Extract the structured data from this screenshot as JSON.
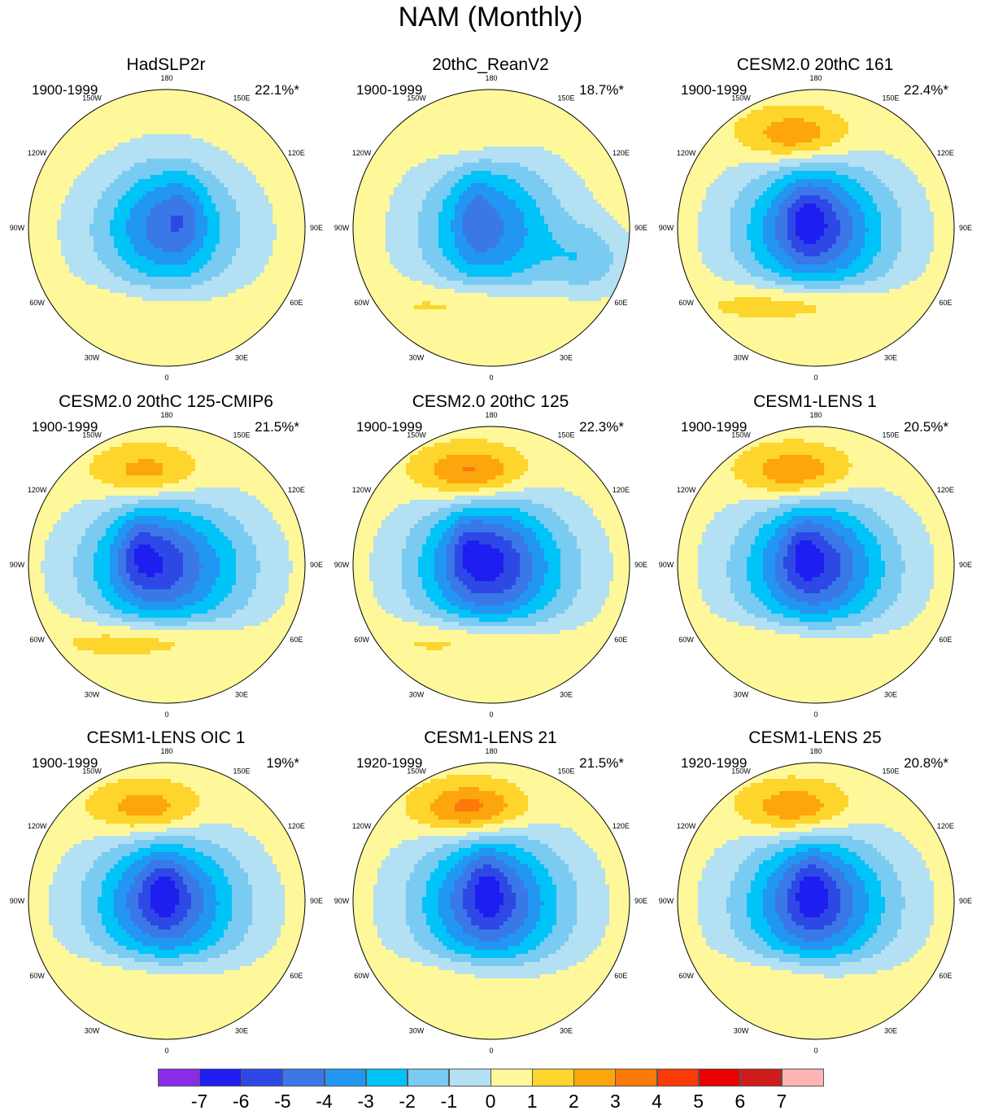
{
  "title": "NAM (Monthly)",
  "panels": [
    {
      "title": "HadSLP2r",
      "period": "1900-1999",
      "variance": "22.1%*",
      "pac": 0.0,
      "atl": 0.8,
      "low": [
        [
          0,
          -3.5,
          5.0,
          4.2
        ],
        [
          -0.2,
          -0.5,
          2.8,
          3.4
        ],
        [
          1.0,
          -0.8,
          1.2,
          2.6
        ]
      ],
      "bfill": false
    },
    {
      "title": "20thC_ReanV2",
      "period": "1900-1999",
      "variance": "18.7%*",
      "pac": 1.0,
      "atl": 1.6,
      "low": [
        [
          0,
          -3.2,
          5.0,
          4.5
        ],
        [
          -0.2,
          -0.3,
          3.0,
          4.0
        ],
        [
          -1.0,
          -0.8,
          1.0,
          2.5
        ]
      ],
      "bfill": true
    },
    {
      "title": "CESM2.0 20thC 161",
      "period": "1900-1999",
      "variance": "22.4%*",
      "pac": 2.8,
      "atl": 2.2,
      "low": [
        [
          0,
          -5.0,
          5.0,
          4.3
        ],
        [
          -0.2,
          -0.5,
          2.4,
          3.1
        ],
        [
          -0.6,
          -0.8,
          1.2,
          2.2
        ]
      ],
      "bfill": false
    },
    {
      "title": "CESM2.0 20thC 125-CMIP6",
      "period": "1900-1999",
      "variance": "21.5%*",
      "pac": 2.4,
      "atl": 2.2,
      "low": [
        [
          0,
          -5.2,
          5.2,
          4.2
        ],
        [
          -1.0,
          -0.5,
          2.2,
          3.0
        ],
        [
          -1.8,
          -1.0,
          1.0,
          2.0
        ]
      ],
      "bfill": false
    },
    {
      "title": "CESM2.0 20thC 125",
      "period": "1900-1999",
      "variance": "22.3%*",
      "pac": 3.3,
      "atl": 2.0,
      "low": [
        [
          0,
          -5.5,
          5.0,
          4.3
        ],
        [
          -0.3,
          -0.5,
          2.4,
          3.1
        ],
        [
          -1.6,
          -1.2,
          1.0,
          1.8
        ]
      ],
      "bfill": false
    },
    {
      "title": "CESM1-LENS 1",
      "period": "1900-1999",
      "variance": "20.5%*",
      "pac": 3.0,
      "atl": 1.5,
      "low": [
        [
          0,
          -5.1,
          5.0,
          4.3
        ],
        [
          -0.2,
          -0.4,
          2.4,
          3.2
        ],
        [
          -0.8,
          -1.0,
          1.0,
          2.0
        ]
      ],
      "bfill": false
    },
    {
      "title": "CESM1-LENS OIC 1",
      "period": "1900-1999",
      "variance": "19%*",
      "pac": 2.6,
      "atl": 1.3,
      "low": [
        [
          0,
          -5.0,
          5.0,
          4.2
        ],
        [
          -0.2,
          -0.4,
          2.4,
          3.1
        ],
        [
          -0.2,
          -0.9,
          1.0,
          2.0
        ]
      ],
      "bfill": false
    },
    {
      "title": "CESM1-LENS 21",
      "period": "1920-1999",
      "variance": "21.5%*",
      "pac": 3.5,
      "atl": 1.3,
      "low": [
        [
          0,
          -5.0,
          5.0,
          4.4
        ],
        [
          -0.2,
          -0.4,
          2.4,
          3.3
        ],
        [
          -0.3,
          -1.0,
          1.0,
          2.2
        ]
      ],
      "bfill": false
    },
    {
      "title": "CESM1-LENS 25",
      "period": "1920-1999",
      "variance": "20.8%*",
      "pac": 2.9,
      "atl": 1.4,
      "low": [
        [
          0,
          -5.1,
          5.0,
          4.3
        ],
        [
          -0.2,
          -0.4,
          2.4,
          3.2
        ],
        [
          -0.3,
          -0.9,
          1.0,
          2.1
        ]
      ],
      "bfill": false
    }
  ],
  "lon_labels": [
    "180",
    "150E",
    "120E",
    "90E",
    "60E",
    "30E",
    "0",
    "30W",
    "60W",
    "90W",
    "120W",
    "150W"
  ],
  "colorbar": {
    "colors": [
      "#8a2be8",
      "#1e1ef0",
      "#2e48e6",
      "#3a78e8",
      "#2196f3",
      "#00c3f8",
      "#79cbf2",
      "#b3e0f2",
      "#fef89a",
      "#fdd52c",
      "#fda50d",
      "#fc7a0a",
      "#fc3a05",
      "#e80202",
      "#d01b1b",
      "#fcb4b4"
    ],
    "labels": [
      "-7",
      "-6",
      "-5",
      "-4",
      "-3",
      "-2",
      "-1",
      "0",
      "1",
      "2",
      "3",
      "4",
      "5",
      "6",
      "7"
    ]
  }
}
